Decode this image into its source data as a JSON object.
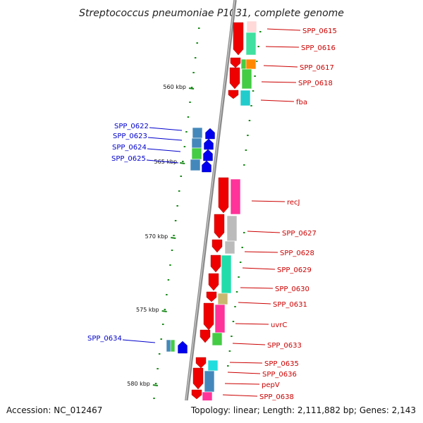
{
  "title": "Streptococcus pneumoniae P1031, complete genome",
  "footer": {
    "accession": "Accession: NC_012467",
    "summary": "Topology: linear; Length: 2,111,882 bp; Genes: 2,143"
  },
  "colors": {
    "axis": "#8a8a8a",
    "tick": "#1a8a1a",
    "forward_label": "#cc0000",
    "reverse_label": "#0000cc",
    "forward_arrow": "#ee0000",
    "reverse_arrow": "#0000ee"
  },
  "scale_ticks": [
    {
      "label": "560 kbp",
      "kbp": 560
    },
    {
      "label": "565 kbp",
      "kbp": 565
    },
    {
      "label": "570 kbp",
      "kbp": 570
    },
    {
      "label": "575 kbp",
      "kbp": 575
    },
    {
      "label": "580 kbp",
      "kbp": 580
    }
  ],
  "forward_genes": [
    {
      "name": "SPP_0615",
      "color": "#40e0a0"
    },
    {
      "name": "SPP_0616",
      "color": "#40e0a0"
    },
    {
      "name": "SPP_0617",
      "color": "#44cc44"
    },
    {
      "name": "SPP_0618",
      "color": "#44cc44"
    },
    {
      "name": "fba",
      "color": "#22cccc"
    },
    {
      "name": "recJ",
      "color": "#ff3399"
    },
    {
      "name": "SPP_0627",
      "color": "#bbbbbb"
    },
    {
      "name": "SPP_0628",
      "color": "#bbbbbb"
    },
    {
      "name": "SPP_0629",
      "color": "#22ddaa"
    },
    {
      "name": "SPP_0630",
      "color": "#22ddaa"
    },
    {
      "name": "SPP_0631",
      "color": "#c8b870"
    },
    {
      "name": "uvrC",
      "color": "#ff3399"
    },
    {
      "name": "SPP_0633",
      "color": "#44cc44"
    },
    {
      "name": "SPP_0635",
      "color": "#22dddd"
    },
    {
      "name": "SPP_0636",
      "color": "#4488bb"
    },
    {
      "name": "pepV",
      "color": "#4488bb"
    },
    {
      "name": "SPP_0638",
      "color": "#ff3399"
    }
  ],
  "reverse_genes": [
    {
      "name": "SPP_0622",
      "color": "#4488bb"
    },
    {
      "name": "SPP_0623",
      "color": "#4488bb"
    },
    {
      "name": "SPP_0624",
      "color": "#44cc44"
    },
    {
      "name": "SPP_0625",
      "color": "#4488bb"
    },
    {
      "name": "SPP_0634",
      "color": "#4488bb"
    }
  ]
}
